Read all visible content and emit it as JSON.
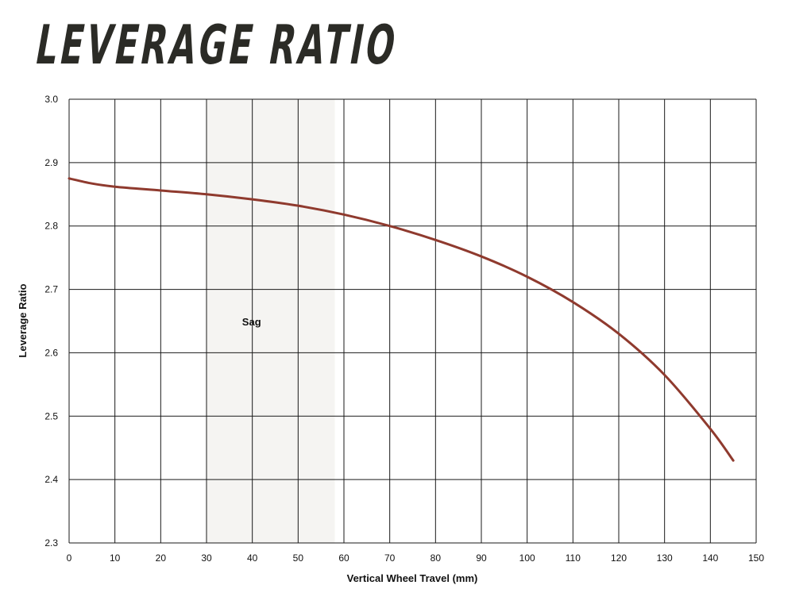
{
  "chart_data": {
    "type": "line",
    "title": "LEVERAGE RATIO",
    "xlabel": "Vertical Wheel Travel (mm)",
    "ylabel": "Leverage Ratio",
    "xlim": [
      0,
      150
    ],
    "ylim": [
      2.3,
      3.0
    ],
    "x_ticks": [
      "0",
      "10",
      "20",
      "30",
      "40",
      "50",
      "60",
      "70",
      "80",
      "90",
      "100",
      "110",
      "120",
      "130",
      "140",
      "150"
    ],
    "y_ticks": [
      "3.0",
      "2.9",
      "2.8",
      "2.7",
      "2.6",
      "2.5",
      "2.4",
      "2.3"
    ],
    "grid": true,
    "colors": {
      "line": "#8f3a2e",
      "band": "#f5f4f2",
      "grid": "#1a1a1a"
    },
    "shaded_region": {
      "label": "Sag",
      "x_start": 30,
      "x_end": 58
    },
    "series": [
      {
        "x": [
          0,
          5,
          10,
          20,
          30,
          40,
          50,
          60,
          70,
          80,
          90,
          100,
          110,
          120,
          130,
          140,
          145
        ],
        "values": [
          2.875,
          2.867,
          2.862,
          2.856,
          2.85,
          2.842,
          2.832,
          2.818,
          2.8,
          2.778,
          2.752,
          2.72,
          2.68,
          2.63,
          2.565,
          2.48,
          2.43
        ]
      }
    ]
  }
}
